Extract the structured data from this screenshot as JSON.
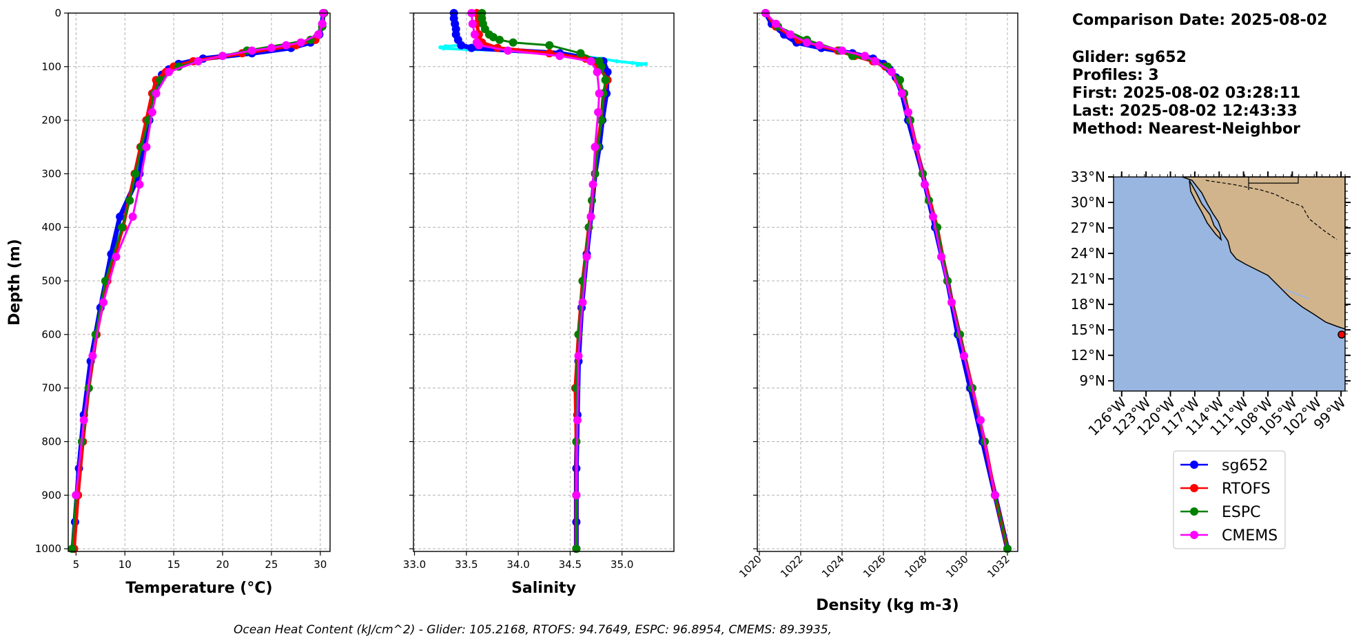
{
  "info": {
    "comparison_date": "Comparison Date: 2025-08-02",
    "glider": "Glider: sg652",
    "profiles": "Profiles: 3",
    "first": "First: 2025-08-02 03:28:11",
    "last": "Last: 2025-08-02 12:43:33",
    "method": "Method: Nearest-Neighbor"
  },
  "footer": "Ocean Heat Content (kJ/cm^2) - Glider: 105.2168,  RTOFS: 94.7649,  ESPC: 96.8954,  CMEMS: 89.3935,",
  "colors": {
    "sg652": "#0000ff",
    "RTOFS": "#ff0000",
    "ESPC": "#008000",
    "CMEMS": "#ff00ff",
    "glider_raw": "#00ffff",
    "ocean": "#98b6e0",
    "land": "#d2b48c"
  },
  "chart_data": [
    {
      "type": "line",
      "xlabel": "Temperature (°C)",
      "ylabel": "Depth (m)",
      "xlim": [
        4.2,
        31
      ],
      "ylim": [
        1005,
        0
      ],
      "xticks": [
        "5",
        "10",
        "15",
        "20",
        "25",
        "30"
      ],
      "yticks": [
        "0",
        "100",
        "200",
        "300",
        "400",
        "500",
        "600",
        "700",
        "800",
        "900",
        "1000"
      ],
      "grid": true,
      "series": [
        {
          "name": "sg652",
          "depth": [
            0,
            20,
            40,
            55,
            65,
            75,
            85,
            95,
            105,
            115,
            130,
            150,
            200,
            300,
            380,
            450,
            550,
            650,
            750,
            850,
            950,
            1000
          ],
          "values": [
            30.3,
            30.2,
            29.9,
            29.0,
            27.0,
            23.0,
            18.0,
            15.5,
            14.5,
            13.8,
            13.3,
            13.0,
            12.5,
            11.5,
            9.5,
            8.6,
            7.5,
            6.5,
            5.8,
            5.3,
            4.9,
            4.7
          ]
        },
        {
          "name": "RTOFS",
          "depth": [
            0,
            25,
            50,
            60,
            75,
            90,
            100,
            110,
            125,
            150,
            200,
            250,
            300,
            400,
            500,
            600,
            700,
            800,
            900,
            1000
          ],
          "values": [
            30.3,
            30.2,
            29.5,
            27.5,
            22.0,
            17.0,
            15.0,
            14.2,
            13.2,
            12.8,
            12.2,
            11.6,
            11.0,
            9.8,
            8.2,
            7.1,
            6.3,
            5.7,
            5.2,
            4.8
          ]
        },
        {
          "name": "ESPC",
          "depth": [
            0,
            25,
            50,
            70,
            80,
            90,
            100,
            125,
            150,
            200,
            250,
            300,
            350,
            400,
            500,
            600,
            700,
            800,
            900,
            1000
          ],
          "values": [
            30.4,
            30.2,
            29.0,
            22.5,
            20.0,
            17.5,
            15.5,
            13.6,
            13.0,
            12.4,
            11.7,
            11.1,
            10.5,
            9.7,
            8.0,
            7.0,
            6.3,
            5.6,
            5.0,
            4.6
          ]
        },
        {
          "name": "CMEMS",
          "depth": [
            0,
            20,
            40,
            55,
            60,
            65,
            70,
            80,
            90,
            110,
            150,
            185,
            250,
            320,
            380,
            455,
            540,
            640,
            760,
            900
          ],
          "values": [
            30.3,
            30.2,
            29.8,
            28.0,
            26.5,
            25.0,
            23.0,
            20.0,
            17.5,
            14.5,
            13.2,
            12.8,
            12.2,
            11.5,
            10.8,
            9.1,
            7.8,
            6.7,
            5.8,
            5.0
          ]
        }
      ]
    },
    {
      "type": "line",
      "xlabel": "Salinity",
      "ylabel": "",
      "xlim": [
        32.99,
        35.5
      ],
      "ylim": [
        1005,
        0
      ],
      "xticks": [
        "33.0",
        "33.5",
        "34.0",
        "34.5",
        "35.0"
      ],
      "yticks": [
        "0",
        "100",
        "200",
        "300",
        "400",
        "500",
        "600",
        "700",
        "800",
        "900",
        "1000"
      ],
      "grid": true,
      "series": [
        {
          "name": "glider_raw",
          "depth": [
            0,
            10,
            20,
            30,
            40,
            50,
            60,
            62,
            64,
            66,
            68,
            70,
            75,
            80,
            85,
            90,
            93,
            95,
            97
          ],
          "values": [
            33.38,
            33.38,
            33.39,
            33.4,
            33.4,
            33.42,
            33.45,
            33.3,
            33.25,
            33.28,
            33.5,
            33.9,
            34.3,
            34.6,
            34.8,
            34.95,
            35.1,
            35.23,
            35.15
          ]
        },
        {
          "name": "sg652",
          "depth": [
            0,
            10,
            20,
            30,
            40,
            50,
            60,
            65,
            75,
            90,
            110,
            150,
            200,
            250,
            300,
            380,
            450,
            550,
            650,
            750,
            850,
            950,
            1000
          ],
          "values": [
            33.38,
            33.38,
            33.39,
            33.4,
            33.4,
            33.42,
            33.45,
            33.55,
            34.4,
            34.82,
            34.86,
            34.85,
            34.81,
            34.78,
            34.74,
            34.7,
            34.66,
            34.61,
            34.58,
            34.57,
            34.56,
            34.56,
            34.56
          ]
        },
        {
          "name": "RTOFS",
          "depth": [
            0,
            20,
            40,
            55,
            65,
            75,
            85,
            100,
            125,
            150,
            200,
            250,
            300,
            400,
            500,
            600,
            700,
            800,
            900,
            1000
          ],
          "values": [
            33.6,
            33.6,
            33.62,
            33.65,
            33.8,
            34.3,
            34.65,
            34.78,
            34.86,
            34.82,
            34.8,
            34.76,
            34.74,
            34.68,
            34.62,
            34.58,
            34.55,
            34.56,
            34.56,
            34.56
          ]
        },
        {
          "name": "ESPC",
          "depth": [
            0,
            10,
            20,
            30,
            40,
            45,
            50,
            55,
            60,
            75,
            90,
            100,
            125,
            150,
            200,
            250,
            300,
            350,
            400,
            500,
            600,
            700,
            800,
            900,
            1000
          ],
          "values": [
            33.65,
            33.65,
            33.66,
            33.68,
            33.72,
            33.76,
            33.82,
            33.95,
            34.3,
            34.6,
            34.78,
            34.8,
            34.84,
            34.82,
            34.8,
            34.77,
            34.74,
            34.71,
            34.68,
            34.62,
            34.58,
            34.56,
            34.56,
            34.56,
            34.56
          ]
        },
        {
          "name": "CMEMS",
          "depth": [
            0,
            20,
            40,
            55,
            60,
            70,
            80,
            90,
            110,
            150,
            185,
            250,
            320,
            380,
            455,
            540,
            640,
            760,
            900
          ],
          "values": [
            33.55,
            33.56,
            33.58,
            33.6,
            33.62,
            33.9,
            34.4,
            34.7,
            34.76,
            34.78,
            34.77,
            34.74,
            34.72,
            34.7,
            34.66,
            34.62,
            34.58,
            34.57,
            34.56
          ]
        }
      ]
    },
    {
      "type": "line",
      "xlabel": "Density (kg m-3)",
      "ylabel": "",
      "xlim": [
        1019.9,
        1032.5
      ],
      "ylim": [
        1005,
        0
      ],
      "xticks": [
        "1020",
        "1022",
        "1024",
        "1026",
        "1028",
        "1030",
        "1032"
      ],
      "yticks": [
        "0",
        "100",
        "200",
        "300",
        "400",
        "500",
        "600",
        "700",
        "800",
        "900",
        "1000"
      ],
      "grid": true,
      "series": [
        {
          "name": "sg652",
          "depth": [
            0,
            20,
            40,
            55,
            65,
            75,
            85,
            95,
            105,
            120,
            150,
            200,
            300,
            400,
            500,
            600,
            700,
            800,
            900,
            1000
          ],
          "values": [
            1020.3,
            1020.6,
            1021.2,
            1021.8,
            1023.0,
            1024.5,
            1025.5,
            1026.0,
            1026.3,
            1026.6,
            1026.9,
            1027.2,
            1027.9,
            1028.5,
            1029.1,
            1029.6,
            1030.2,
            1030.8,
            1031.4,
            1032.0
          ]
        },
        {
          "name": "RTOFS",
          "depth": [
            0,
            25,
            50,
            70,
            80,
            90,
            100,
            125,
            150,
            200,
            300,
            400,
            500,
            600,
            700,
            800,
            900,
            1000
          ],
          "values": [
            1020.3,
            1020.8,
            1021.9,
            1023.8,
            1024.6,
            1025.5,
            1026.1,
            1026.7,
            1027.0,
            1027.3,
            1027.9,
            1028.6,
            1029.1,
            1029.7,
            1030.3,
            1030.9,
            1031.4,
            1032.0
          ]
        },
        {
          "name": "ESPC",
          "depth": [
            0,
            25,
            50,
            70,
            80,
            90,
            100,
            125,
            150,
            200,
            250,
            300,
            350,
            400,
            500,
            600,
            700,
            800,
            900,
            1000
          ],
          "values": [
            1020.3,
            1020.9,
            1022.3,
            1023.9,
            1024.5,
            1025.6,
            1026.2,
            1026.8,
            1027.0,
            1027.3,
            1027.6,
            1027.9,
            1028.2,
            1028.6,
            1029.1,
            1029.7,
            1030.3,
            1030.9,
            1031.4,
            1032.0
          ]
        },
        {
          "name": "CMEMS",
          "depth": [
            0,
            20,
            40,
            55,
            60,
            70,
            80,
            90,
            110,
            150,
            185,
            250,
            320,
            380,
            455,
            540,
            640,
            760,
            900
          ],
          "values": [
            1020.3,
            1020.8,
            1021.5,
            1022.3,
            1022.9,
            1024.0,
            1025.1,
            1025.6,
            1026.4,
            1026.9,
            1027.2,
            1027.6,
            1028.0,
            1028.4,
            1028.8,
            1029.3,
            1029.9,
            1030.7,
            1031.4
          ]
        }
      ]
    }
  ],
  "map": {
    "lat_ticks": [
      "33°N",
      "30°N",
      "27°N",
      "24°N",
      "21°N",
      "18°N",
      "15°N",
      "12°N",
      "9°N"
    ],
    "lon_ticks": [
      "126°W",
      "123°W",
      "120°W",
      "117°W",
      "114°W",
      "111°W",
      "108°W",
      "105°W",
      "102°W",
      "99°W"
    ],
    "glider_location": [
      15.0,
      -99.2
    ]
  },
  "legend": [
    "sg652",
    "RTOFS",
    "ESPC",
    "CMEMS"
  ]
}
